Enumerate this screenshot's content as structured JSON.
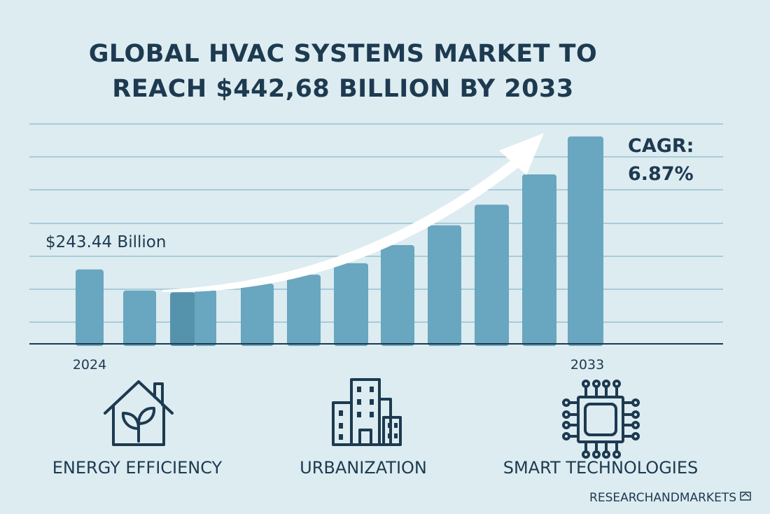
{
  "chart_data": {
    "type": "bar",
    "title": "GLOBAL HVAC SYSTEMS MARKET TO REACH $442,68 BILLION BY 2033",
    "title_lines": [
      "GLOBAL HVAC SYSTEMS MARKET TO",
      "REACH $442,68 BILLION BY 2033"
    ],
    "x_tick_labels": [
      "2024",
      "2033"
    ],
    "values_relative": [
      2.26,
      1.62,
      1.57,
      1.64,
      1.83,
      2.1,
      2.45,
      3.0,
      3.6,
      4.23,
      5.15,
      6.3
    ],
    "ylim": [
      0,
      6.8
    ],
    "grid": true,
    "annotations": {
      "start_value": "$243.44 Billion",
      "cagr_label": "CAGR:",
      "cagr_value": "6.87%"
    },
    "trend_arrow": "upward curved white arrow",
    "colors": {
      "bar": "#69a6c0",
      "bar_dark": "#5593ad",
      "text": "#1d3a50",
      "background": "#dcecf1",
      "grid": "#a9cbd8"
    }
  },
  "drivers": [
    {
      "label": "ENERGY EFFICIENCY",
      "icon": "house-leaf-icon"
    },
    {
      "label": "URBANIZATION",
      "icon": "buildings-icon"
    },
    {
      "label": "SMART TECHNOLOGIES",
      "icon": "microchip-icon"
    }
  ],
  "brand": "RESEARCHANDMARKETS"
}
